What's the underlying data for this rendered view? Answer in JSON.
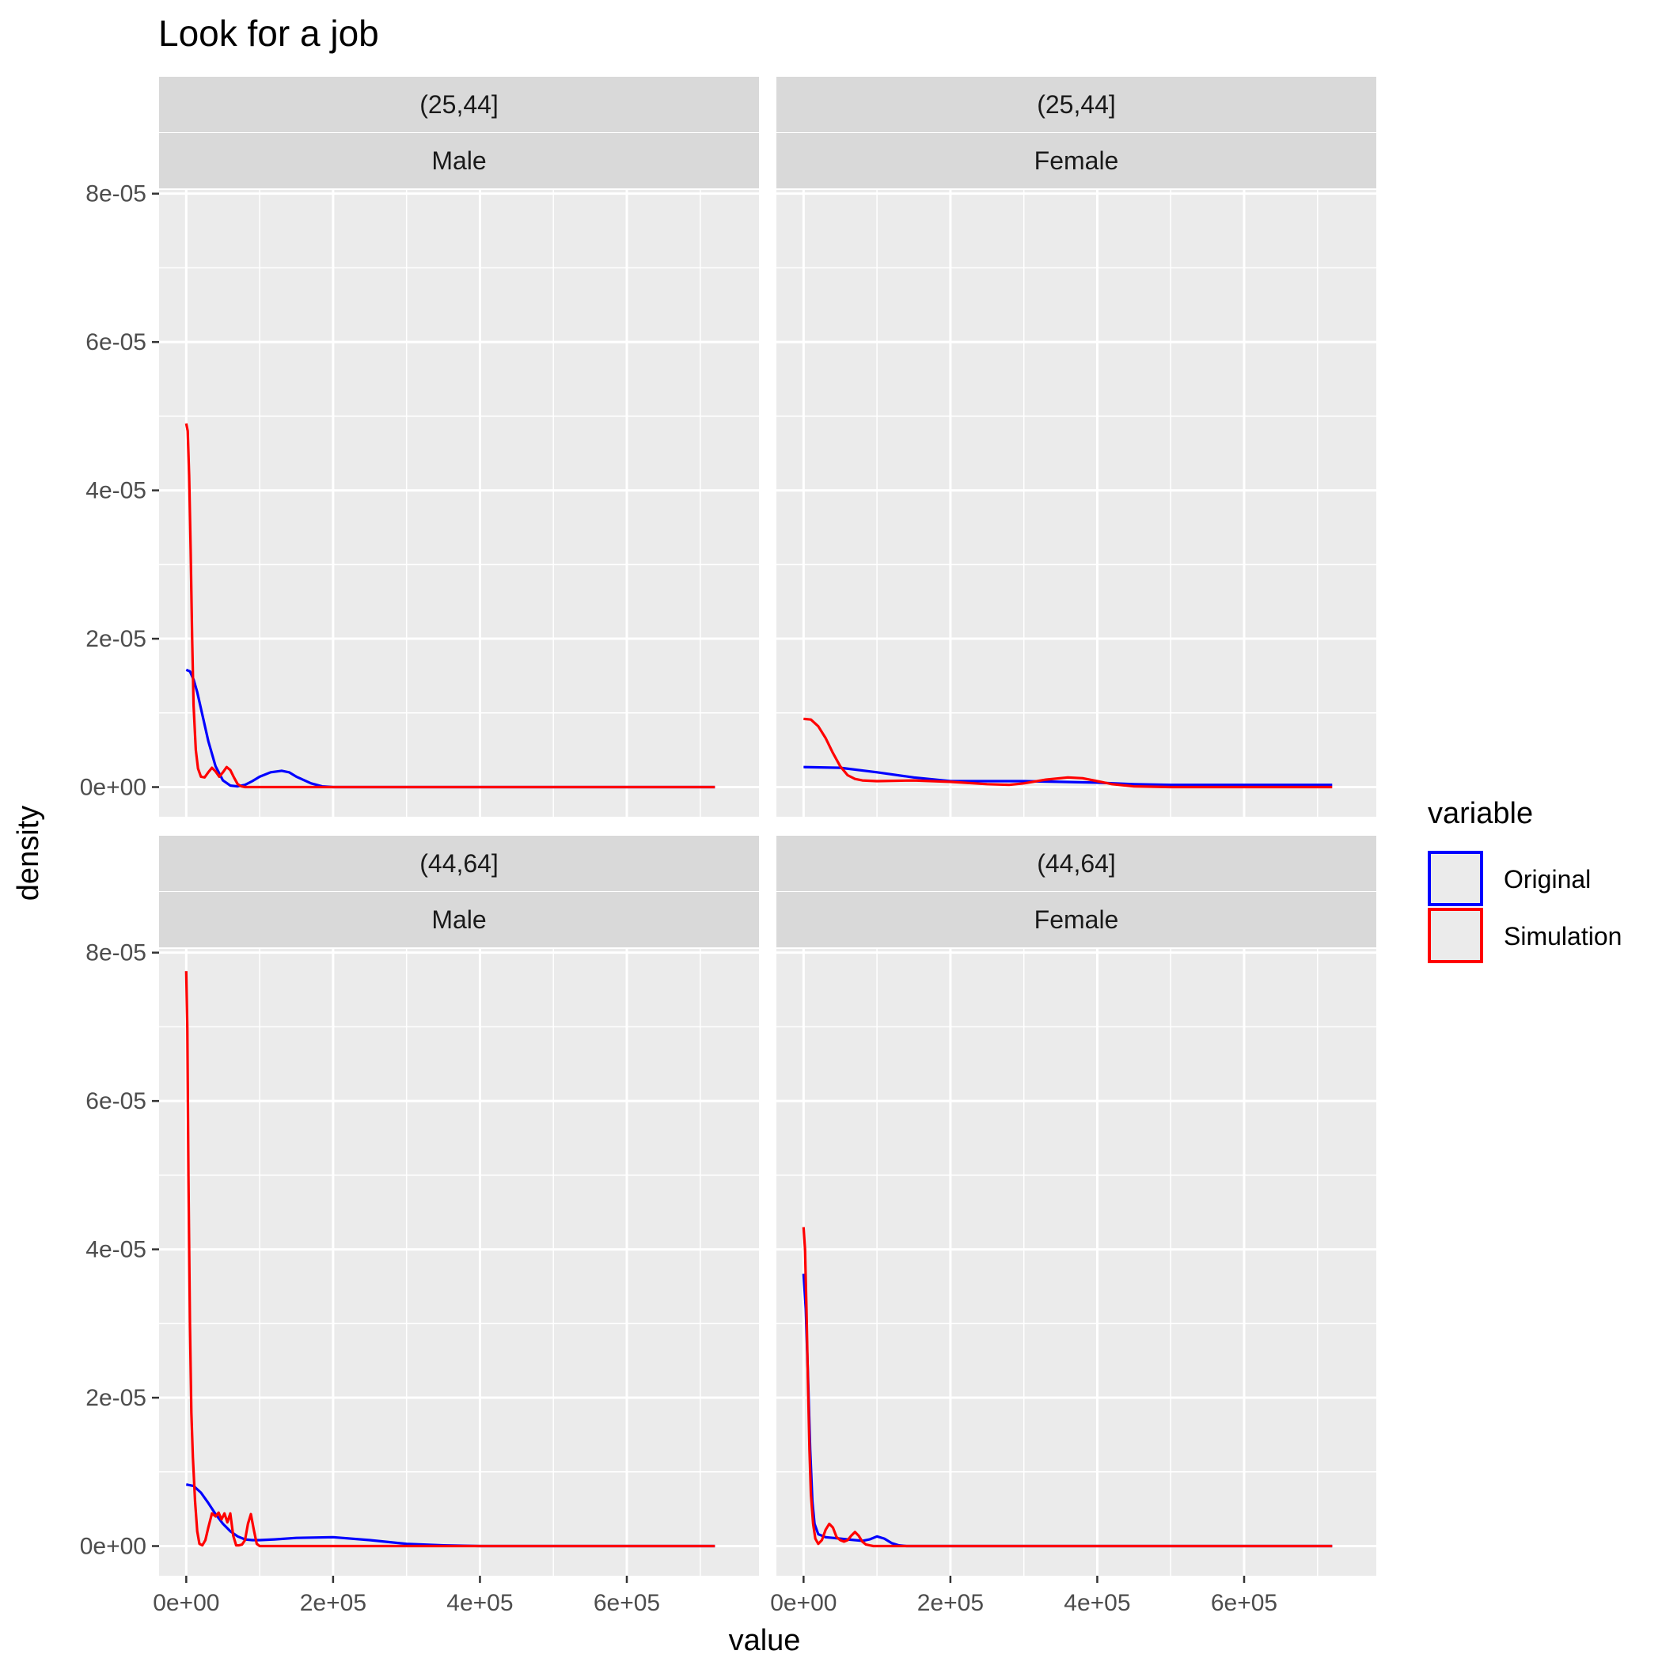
{
  "chart_data": {
    "type": "line",
    "title": "Look for a job",
    "xlabel": "value",
    "ylabel": "density",
    "xlim": [
      -37000,
      780000
    ],
    "ylim": [
      -4e-06,
      8.05e-05
    ],
    "x_ticks": [
      0,
      200000,
      400000,
      600000
    ],
    "x_tick_labels": [
      "0e+00",
      "2e+05",
      "4e+05",
      "6e+05"
    ],
    "y_ticks": [
      0,
      2e-05,
      4e-05,
      6e-05,
      8e-05
    ],
    "y_tick_labels": [
      "0e+00",
      "2e-05",
      "4e-05",
      "6e-05",
      "8e-05"
    ],
    "grid": true,
    "legend": {
      "title": "variable",
      "position": "right",
      "entries": [
        {
          "name": "Original",
          "color": "#0000ff"
        },
        {
          "name": "Simulation",
          "color": "#ff0000"
        }
      ]
    },
    "panels": [
      {
        "age": "(25,44]",
        "sex": "Male",
        "series": [
          {
            "name": "Original",
            "color": "#0000ff",
            "x": [
              0,
              5000,
              10000,
              15000,
              20000,
              30000,
              40000,
              50000,
              60000,
              70000,
              80000,
              90000,
              100000,
              115000,
              130000,
              140000,
              150000,
              170000,
              185000,
              200000,
              300000,
              400000,
              500000,
              600000,
              720000
            ],
            "y": [
              1.58e-05,
              1.56e-05,
              1.45e-05,
              1.28e-05,
              1.06e-05,
              6.2e-06,
              2.8e-06,
              9e-07,
              2e-07,
              1e-07,
              3e-07,
              8e-07,
              1.4e-06,
              2e-06,
              2.2e-06,
              2e-06,
              1.4e-06,
              5e-07,
              1e-07,
              0,
              0,
              0,
              0,
              0,
              0
            ]
          },
          {
            "name": "Simulation",
            "color": "#ff0000",
            "x": [
              0,
              2000,
              4000,
              6000,
              8000,
              10000,
              13000,
              16000,
              20000,
              25000,
              30000,
              35000,
              40000,
              45000,
              50000,
              55000,
              60000,
              65000,
              70000,
              75000,
              80000,
              90000,
              100000,
              200000,
              400000,
              600000,
              720000
            ],
            "y": [
              4.9e-05,
              4.8e-05,
              4.2e-05,
              3.2e-05,
              2e-05,
              1.1e-05,
              5e-06,
              2.5e-06,
              1.4e-06,
              1.3e-06,
              2e-06,
              2.6e-06,
              2.1e-06,
              1.4e-06,
              2e-06,
              2.7e-06,
              2.3e-06,
              1.3e-06,
              4e-07,
              1e-07,
              0,
              0,
              0,
              0,
              0,
              0,
              0
            ]
          }
        ]
      },
      {
        "age": "(25,44]",
        "sex": "Female",
        "series": [
          {
            "name": "Original",
            "color": "#0000ff",
            "x": [
              0,
              50000,
              100000,
              150000,
              200000,
              250000,
              300000,
              350000,
              400000,
              450000,
              500000,
              550000,
              600000,
              650000,
              720000
            ],
            "y": [
              2.7e-06,
              2.6e-06,
              2e-06,
              1.3e-06,
              8e-07,
              8e-07,
              8e-07,
              7e-07,
              6e-07,
              4e-07,
              3e-07,
              3e-07,
              3e-07,
              3e-07,
              3e-07
            ]
          },
          {
            "name": "Simulation",
            "color": "#ff0000",
            "x": [
              0,
              10000,
              20000,
              30000,
              40000,
              50000,
              60000,
              70000,
              80000,
              100000,
              150000,
              200000,
              250000,
              280000,
              300000,
              330000,
              360000,
              380000,
              400000,
              420000,
              450000,
              500000,
              600000,
              720000
            ],
            "y": [
              9.2e-06,
              9.1e-06,
              8.2e-06,
              6.6e-06,
              4.6e-06,
              2.8e-06,
              1.6e-06,
              1.1e-06,
              9e-07,
              8e-07,
              9e-07,
              7e-07,
              4e-07,
              3e-07,
              5e-07,
              1e-06,
              1.3e-06,
              1.2e-06,
              8e-07,
              4e-07,
              1e-07,
              0,
              0,
              0
            ]
          }
        ]
      },
      {
        "age": "(44,64]",
        "sex": "Male",
        "series": [
          {
            "name": "Original",
            "color": "#0000ff",
            "x": [
              0,
              10000,
              20000,
              30000,
              40000,
              50000,
              60000,
              70000,
              80000,
              90000,
              100000,
              120000,
              150000,
              200000,
              250000,
              300000,
              350000,
              400000,
              500000,
              600000,
              720000
            ],
            "y": [
              8.3e-06,
              8.1e-06,
              7.2e-06,
              5.8e-06,
              4.3e-06,
              3e-06,
              2e-06,
              1.3e-06,
              9e-07,
              8e-07,
              8e-07,
              9e-07,
              1.1e-06,
              1.2e-06,
              8e-07,
              3e-07,
              1e-07,
              0,
              0,
              0,
              0
            ]
          },
          {
            "name": "Simulation",
            "color": "#ff0000",
            "x": [
              0,
              1500,
              3000,
              5000,
              7000,
              9000,
              12000,
              15000,
              18000,
              22000,
              26000,
              30000,
              35000,
              40000,
              44000,
              48000,
              52000,
              56000,
              60000,
              64000,
              68000,
              72000,
              76000,
              80000,
              84000,
              88000,
              92000,
              96000,
              100000,
              200000,
              400000,
              600000,
              720000
            ],
            "y": [
              7.75e-05,
              7e-05,
              5e-05,
              3e-05,
              1.8e-05,
              1.2e-05,
              6e-06,
              2e-06,
              3e-07,
              1e-07,
              8e-07,
              2.5e-06,
              4.4e-06,
              4e-06,
              4.5e-06,
              3.6e-06,
              4.4e-06,
              3.2e-06,
              4.4e-06,
              1.4e-06,
              1e-07,
              1e-07,
              2e-07,
              8e-07,
              3e-06,
              4.3e-06,
              2.2e-06,
              3e-07,
              0,
              0,
              0,
              0,
              0
            ]
          }
        ]
      },
      {
        "age": "(44,64]",
        "sex": "Female",
        "series": [
          {
            "name": "Original",
            "color": "#0000ff",
            "x": [
              0,
              3000,
              6000,
              9000,
              12000,
              15000,
              20000,
              30000,
              40000,
              50000,
              60000,
              70000,
              80000,
              90000,
              100000,
              110000,
              120000,
              130000,
              140000,
              200000,
              400000,
              600000,
              720000
            ],
            "y": [
              3.67e-05,
              3.2e-05,
              2.3e-05,
              1.3e-05,
              6e-06,
              3e-06,
              1.6e-06,
              1.2e-06,
              1.1e-06,
              1e-06,
              9e-07,
              8e-07,
              7e-07,
              9e-07,
              1.3e-06,
              1e-06,
              4e-07,
              1e-07,
              0,
              0,
              0,
              0,
              0
            ]
          },
          {
            "name": "Simulation",
            "color": "#ff0000",
            "x": [
              0,
              2000,
              4000,
              6000,
              8000,
              10000,
              13000,
              16000,
              20000,
              25000,
              30000,
              35000,
              40000,
              45000,
              50000,
              55000,
              60000,
              65000,
              70000,
              75000,
              80000,
              85000,
              90000,
              95000,
              100000,
              200000,
              400000,
              600000,
              720000
            ],
            "y": [
              4.3e-05,
              4e-05,
              3.2e-05,
              2.2e-05,
              1.3e-05,
              7e-06,
              3e-06,
              1e-06,
              3e-07,
              8e-07,
              2.2e-06,
              3e-06,
              2.5e-06,
              1.2e-06,
              8e-07,
              6e-07,
              8e-07,
              1.4e-06,
              1.9e-06,
              1.4e-06,
              6e-07,
              2e-07,
              1e-07,
              0,
              0,
              0,
              0,
              0,
              0
            ]
          }
        ]
      }
    ]
  }
}
